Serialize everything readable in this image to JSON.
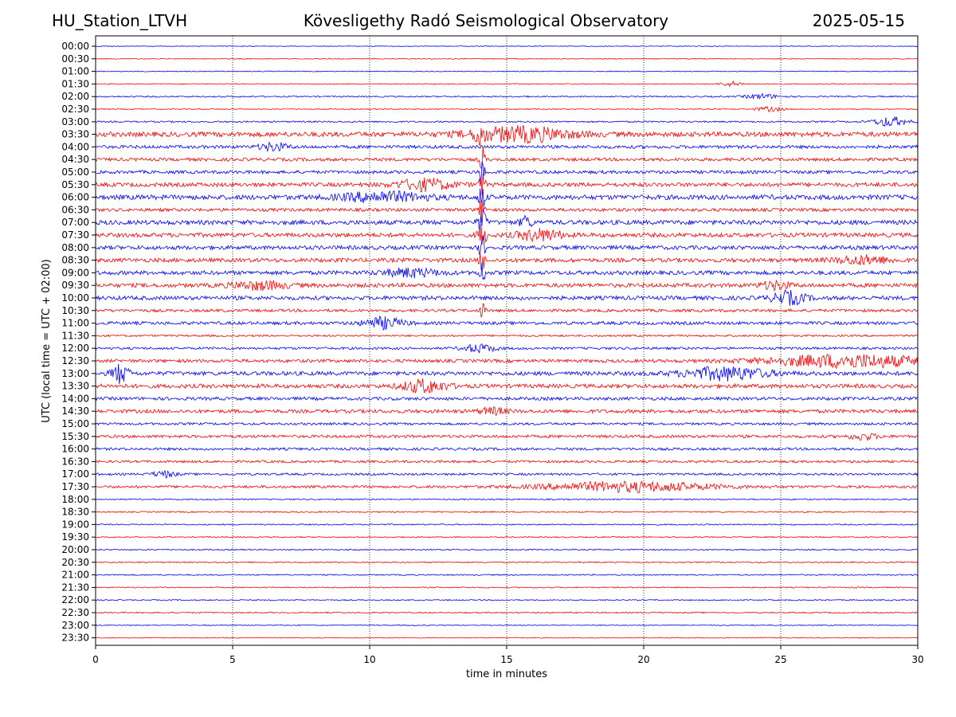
{
  "header": {
    "station": "HU_Station_LTVH",
    "observatory": "Kövesligethy Radó Seismological Observatory",
    "date": "2025-05-15"
  },
  "chart_data": {
    "type": "line",
    "chart_kind": "helicorder",
    "xlabel": "time in minutes",
    "ylabel": "UTC (local time = UTC + 02:00)",
    "xlim": [
      0,
      30
    ],
    "x_ticks": [
      "0",
      "5",
      "10",
      "15",
      "20",
      "25",
      "30"
    ],
    "x_grid": "dotted vertical lines at each major tick",
    "row_labels": [
      "00:00",
      "00:30",
      "01:00",
      "01:30",
      "02:00",
      "02:30",
      "03:00",
      "03:30",
      "04:00",
      "04:30",
      "05:00",
      "05:30",
      "06:00",
      "06:30",
      "07:00",
      "07:30",
      "08:00",
      "08:30",
      "09:00",
      "09:30",
      "10:00",
      "10:30",
      "11:00",
      "11:30",
      "12:00",
      "12:30",
      "13:00",
      "13:30",
      "14:00",
      "14:30",
      "15:00",
      "15:30",
      "16:00",
      "16:30",
      "17:00",
      "17:30",
      "18:00",
      "18:30",
      "19:00",
      "19:30",
      "20:00",
      "20:30",
      "21:00",
      "21:30",
      "22:00",
      "22:30",
      "23:00",
      "23:30"
    ],
    "trace_colors": [
      "#0000ff",
      "#ff0000"
    ],
    "noise_level": [
      0.4,
      0.5,
      0.5,
      0.6,
      0.9,
      0.6,
      1.0,
      3.0,
      2.0,
      2.0,
      2.0,
      2.5,
      3.0,
      2.0,
      2.8,
      2.6,
      2.5,
      2.5,
      2.5,
      2.5,
      2.5,
      1.8,
      2.0,
      1.2,
      1.5,
      2.0,
      2.5,
      2.5,
      2.0,
      2.2,
      1.5,
      1.8,
      1.6,
      1.5,
      1.4,
      1.6,
      0.8,
      0.8,
      0.8,
      0.7,
      0.8,
      0.8,
      0.8,
      0.7,
      0.7,
      0.8,
      0.6,
      0.5
    ],
    "events": [
      {
        "row": 3,
        "minute": 23.2,
        "amp": 3,
        "width": 0.4
      },
      {
        "row": 4,
        "minute": 24.3,
        "amp": 3,
        "width": 0.6
      },
      {
        "row": 5,
        "minute": 24.6,
        "amp": 3,
        "width": 0.5
      },
      {
        "row": 6,
        "minute": 29.0,
        "amp": 6,
        "width": 0.6
      },
      {
        "row": 7,
        "minute": 14.0,
        "amp": 14,
        "width": 0.15
      },
      {
        "row": 7,
        "minute": 15.5,
        "amp": 9,
        "width": 1.8
      },
      {
        "row": 8,
        "minute": 6.5,
        "amp": 5,
        "width": 0.5
      },
      {
        "row": 9,
        "minute": 14.1,
        "amp": 16,
        "width": 0.1
      },
      {
        "row": 10,
        "minute": 14.1,
        "amp": 16,
        "width": 0.1
      },
      {
        "row": 11,
        "minute": 12.0,
        "amp": 7,
        "width": 1.0
      },
      {
        "row": 11,
        "minute": 14.1,
        "amp": 16,
        "width": 0.1
      },
      {
        "row": 12,
        "minute": 10.5,
        "amp": 6,
        "width": 1.5
      },
      {
        "row": 12,
        "minute": 14.1,
        "amp": 16,
        "width": 0.12
      },
      {
        "row": 13,
        "minute": 14.1,
        "amp": 16,
        "width": 0.1
      },
      {
        "row": 14,
        "minute": 14.1,
        "amp": 16,
        "width": 0.15
      },
      {
        "row": 14,
        "minute": 15.7,
        "amp": 8,
        "width": 0.2
      },
      {
        "row": 15,
        "minute": 14.1,
        "amp": 16,
        "width": 0.15
      },
      {
        "row": 15,
        "minute": 16.2,
        "amp": 7,
        "width": 0.8
      },
      {
        "row": 16,
        "minute": 14.1,
        "amp": 16,
        "width": 0.1
      },
      {
        "row": 17,
        "minute": 14.1,
        "amp": 16,
        "width": 0.1
      },
      {
        "row": 17,
        "minute": 28.0,
        "amp": 5,
        "width": 1.0
      },
      {
        "row": 18,
        "minute": 11.5,
        "amp": 5,
        "width": 1.0
      },
      {
        "row": 18,
        "minute": 14.1,
        "amp": 16,
        "width": 0.1
      },
      {
        "row": 19,
        "minute": 6.0,
        "amp": 5,
        "width": 1.0
      },
      {
        "row": 19,
        "minute": 24.8,
        "amp": 5,
        "width": 0.5
      },
      {
        "row": 20,
        "minute": 25.3,
        "amp": 8,
        "width": 0.6
      },
      {
        "row": 21,
        "minute": 14.1,
        "amp": 10,
        "width": 0.1
      },
      {
        "row": 22,
        "minute": 10.5,
        "amp": 7,
        "width": 0.7
      },
      {
        "row": 24,
        "minute": 14.0,
        "amp": 5,
        "width": 0.6
      },
      {
        "row": 25,
        "minute": 27.5,
        "amp": 8,
        "width": 3.0
      },
      {
        "row": 26,
        "minute": 0.9,
        "amp": 12,
        "width": 0.3
      },
      {
        "row": 26,
        "minute": 23.0,
        "amp": 8,
        "width": 1.5
      },
      {
        "row": 27,
        "minute": 12.0,
        "amp": 8,
        "width": 0.8
      },
      {
        "row": 29,
        "minute": 14.5,
        "amp": 4,
        "width": 0.5
      },
      {
        "row": 31,
        "minute": 28.0,
        "amp": 4,
        "width": 0.5
      },
      {
        "row": 34,
        "minute": 2.5,
        "amp": 4,
        "width": 0.4
      },
      {
        "row": 35,
        "minute": 19.5,
        "amp": 6,
        "width": 3.0
      }
    ]
  }
}
